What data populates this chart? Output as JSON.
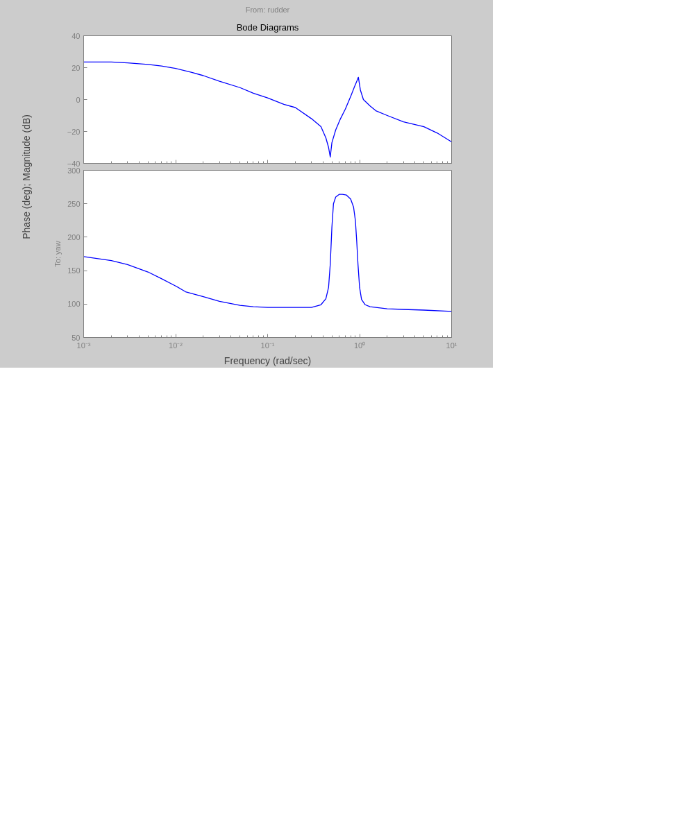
{
  "chart_data": [
    {
      "type": "line",
      "title": "Bode Diagrams",
      "subtitle": "From: rudder",
      "ylabel": "Phase (deg); Magnitude (dB)",
      "log": "x",
      "grid": false,
      "tick_labels": "y",
      "xlim": [
        0.001,
        10
      ],
      "xticks": [
        {
          "value": 0.001,
          "label": null
        },
        {
          "value": 0.01,
          "label": null
        },
        {
          "value": 0.1,
          "label": null
        },
        {
          "value": 1,
          "label": null
        },
        {
          "value": 10,
          "label": null
        }
      ],
      "ylim": [
        -40,
        40
      ],
      "yticks": [
        -40,
        -20,
        0,
        20,
        40
      ],
      "series": [
        {
          "color": "#0000ff",
          "x": [
            0.001,
            0.002,
            0.003,
            0.005,
            0.007,
            0.01,
            0.015,
            0.02,
            0.03,
            0.05,
            0.07,
            0.1,
            0.15,
            0.2,
            0.3,
            0.38,
            0.43,
            0.46,
            0.48,
            0.5,
            0.55,
            0.62,
            0.7,
            0.8,
            0.88,
            0.94,
            0.97,
            1.02,
            1.1,
            1.3,
            1.5,
            2,
            3,
            5,
            7,
            10
          ],
          "values": [
            23.5,
            23.5,
            23,
            22,
            21,
            19.5,
            17,
            15,
            11.5,
            7.5,
            4,
            1,
            -3,
            -5,
            -12,
            -17,
            -24,
            -30,
            -36,
            -27,
            -19,
            -12,
            -6,
            2,
            8,
            12,
            14,
            6,
            0,
            -4,
            -7,
            -10,
            -14,
            -17,
            -21,
            -26.5
          ]
        }
      ]
    },
    {
      "type": "line",
      "xlabel": "Frequency (rad/sec)",
      "ylabel": "To: yaw",
      "log": "x",
      "grid": false,
      "xlim": [
        0.001,
        10
      ],
      "xticks": [
        {
          "value": 0.001,
          "label": "10⁻³"
        },
        {
          "value": 0.01,
          "label": "10⁻²"
        },
        {
          "value": 0.1,
          "label": "10⁻¹"
        },
        {
          "value": 1,
          "label": "10⁰"
        },
        {
          "value": 10,
          "label": "10¹"
        }
      ],
      "ylim": [
        50,
        300
      ],
      "yticks": [
        50,
        100,
        150,
        200,
        250,
        300
      ],
      "series": [
        {
          "color": "#0000ff",
          "x": [
            0.001,
            0.002,
            0.003,
            0.005,
            0.007,
            0.01,
            0.013,
            0.02,
            0.03,
            0.05,
            0.07,
            0.1,
            0.2,
            0.3,
            0.38,
            0.43,
            0.46,
            0.48,
            0.5,
            0.52,
            0.55,
            0.6,
            0.65,
            0.72,
            0.8,
            0.86,
            0.9,
            0.93,
            0.96,
            1.0,
            1.05,
            1.15,
            1.3,
            2,
            3,
            5,
            10
          ],
          "values": [
            171,
            165,
            159,
            148,
            138,
            127,
            118,
            111,
            104,
            98,
            96,
            95,
            95,
            95,
            99,
            108,
            125,
            160,
            215,
            250,
            260,
            264,
            264,
            263,
            257,
            245,
            225,
            195,
            160,
            125,
            107,
            99,
            96,
            93,
            92,
            91,
            89
          ]
        }
      ]
    }
  ]
}
